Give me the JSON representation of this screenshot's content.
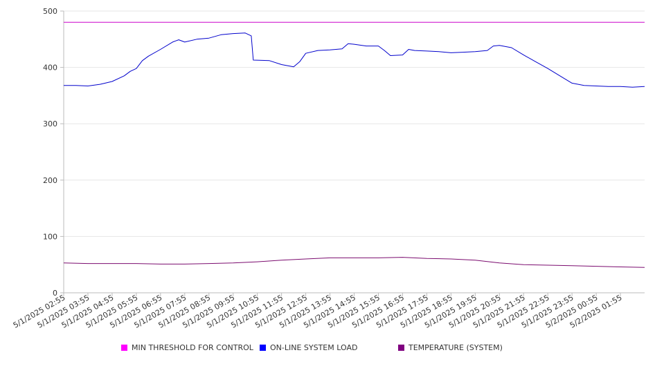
{
  "chart_data": {
    "type": "line",
    "title": "",
    "xlabel": "",
    "ylabel": "",
    "ylim": [
      0,
      500
    ],
    "yticks": [
      0,
      100,
      200,
      300,
      400,
      500
    ],
    "grid": true,
    "legend_position": "bottom",
    "x_tick_labels": [
      "5/1/2025 02:55",
      "5/1/2025 03:55",
      "5/1/2025 04:55",
      "5/1/2025 05:55",
      "5/1/2025 06:55",
      "5/1/2025 07:55",
      "5/1/2025 08:55",
      "5/1/2025 09:55",
      "5/1/2025 10:55",
      "5/1/2025 11:55",
      "5/1/2025 12:55",
      "5/1/2025 13:55",
      "5/1/2025 14:55",
      "5/1/2025 15:55",
      "5/1/2025 16:55",
      "5/1/2025 17:55",
      "5/1/2025 18:55",
      "5/1/2025 19:55",
      "5/1/2025 20:55",
      "5/1/2025 21:55",
      "5/1/2025 22:55",
      "5/1/2025 23:55",
      "5/2/2025 00:55",
      "5/2/2025 01:55"
    ],
    "x_range": [
      "5/1/2025 02:55",
      "5/2/2025 02:55"
    ],
    "series": [
      {
        "name": "MIN THRESHOLD FOR CONTROL",
        "color": "#cc00cc",
        "legend_color": "#ff00ff",
        "points": [
          [
            "5/1/2025 02:55",
            480
          ],
          [
            "5/2/2025 02:55",
            480
          ]
        ]
      },
      {
        "name": "ON-LINE SYSTEM LOAD",
        "color": "#0000cc",
        "legend_color": "#0000ff",
        "points": [
          [
            "5/1/2025 02:55",
            368
          ],
          [
            "5/1/2025 03:25",
            368
          ],
          [
            "5/1/2025 03:55",
            367
          ],
          [
            "5/1/2025 04:25",
            370
          ],
          [
            "5/1/2025 04:55",
            375
          ],
          [
            "5/1/2025 05:25",
            385
          ],
          [
            "5/1/2025 05:40",
            393
          ],
          [
            "5/1/2025 05:55",
            398
          ],
          [
            "5/1/2025 06:10",
            412
          ],
          [
            "5/1/2025 06:25",
            420
          ],
          [
            "5/1/2025 06:55",
            432
          ],
          [
            "5/1/2025 07:25",
            445
          ],
          [
            "5/1/2025 07:40",
            449
          ],
          [
            "5/1/2025 07:55",
            445
          ],
          [
            "5/1/2025 08:25",
            450
          ],
          [
            "5/1/2025 08:55",
            452
          ],
          [
            "5/1/2025 09:25",
            458
          ],
          [
            "5/1/2025 09:55",
            460
          ],
          [
            "5/1/2025 10:25",
            461
          ],
          [
            "5/1/2025 10:40",
            456
          ],
          [
            "5/1/2025 10:45",
            413
          ],
          [
            "5/1/2025 11:25",
            412
          ],
          [
            "5/1/2025 11:55",
            405
          ],
          [
            "5/1/2025 12:25",
            401
          ],
          [
            "5/1/2025 12:40",
            410
          ],
          [
            "5/1/2025 12:55",
            425
          ],
          [
            "5/1/2025 13:25",
            430
          ],
          [
            "5/1/2025 13:55",
            431
          ],
          [
            "5/1/2025 14:25",
            433
          ],
          [
            "5/1/2025 14:40",
            442
          ],
          [
            "5/1/2025 14:55",
            441
          ],
          [
            "5/1/2025 15:25",
            438
          ],
          [
            "5/1/2025 15:55",
            438
          ],
          [
            "5/1/2025 16:10",
            430
          ],
          [
            "5/1/2025 16:25",
            421
          ],
          [
            "5/1/2025 16:55",
            422
          ],
          [
            "5/1/2025 17:10",
            432
          ],
          [
            "5/1/2025 17:25",
            430
          ],
          [
            "5/1/2025 17:55",
            429
          ],
          [
            "5/1/2025 18:25",
            428
          ],
          [
            "5/1/2025 18:55",
            426
          ],
          [
            "5/1/2025 19:25",
            427
          ],
          [
            "5/1/2025 19:55",
            428
          ],
          [
            "5/1/2025 20:25",
            430
          ],
          [
            "5/1/2025 20:40",
            438
          ],
          [
            "5/1/2025 20:55",
            439
          ],
          [
            "5/1/2025 21:25",
            435
          ],
          [
            "5/1/2025 21:55",
            422
          ],
          [
            "5/1/2025 22:25",
            410
          ],
          [
            "5/1/2025 22:55",
            398
          ],
          [
            "5/1/2025 23:25",
            385
          ],
          [
            "5/1/2025 23:55",
            372
          ],
          [
            "5/2/2025 00:25",
            368
          ],
          [
            "5/2/2025 00:55",
            367
          ],
          [
            "5/2/2025 01:25",
            366
          ],
          [
            "5/2/2025 01:55",
            366
          ],
          [
            "5/2/2025 02:25",
            365
          ],
          [
            "5/2/2025 02:55",
            366
          ]
        ]
      },
      {
        "name": "TEMPERATURE (SYSTEM)",
        "color": "#7a0a6e",
        "legend_color": "#800080",
        "points": [
          [
            "5/1/2025 02:55",
            53
          ],
          [
            "5/1/2025 03:55",
            52
          ],
          [
            "5/1/2025 04:55",
            52
          ],
          [
            "5/1/2025 05:55",
            52
          ],
          [
            "5/1/2025 06:55",
            51
          ],
          [
            "5/1/2025 07:55",
            51
          ],
          [
            "5/1/2025 08:55",
            52
          ],
          [
            "5/1/2025 09:55",
            53
          ],
          [
            "5/1/2025 10:55",
            55
          ],
          [
            "5/1/2025 11:55",
            58
          ],
          [
            "5/1/2025 12:55",
            60
          ],
          [
            "5/1/2025 13:55",
            62
          ],
          [
            "5/1/2025 14:55",
            62
          ],
          [
            "5/1/2025 15:55",
            62
          ],
          [
            "5/1/2025 16:55",
            63
          ],
          [
            "5/1/2025 17:55",
            61
          ],
          [
            "5/1/2025 18:55",
            60
          ],
          [
            "5/1/2025 19:55",
            58
          ],
          [
            "5/1/2025 20:55",
            53
          ],
          [
            "5/1/2025 21:55",
            50
          ],
          [
            "5/1/2025 22:55",
            49
          ],
          [
            "5/1/2025 23:55",
            48
          ],
          [
            "5/2/2025 00:55",
            47
          ],
          [
            "5/2/2025 01:55",
            46
          ],
          [
            "5/2/2025 02:55",
            45
          ]
        ]
      }
    ]
  }
}
